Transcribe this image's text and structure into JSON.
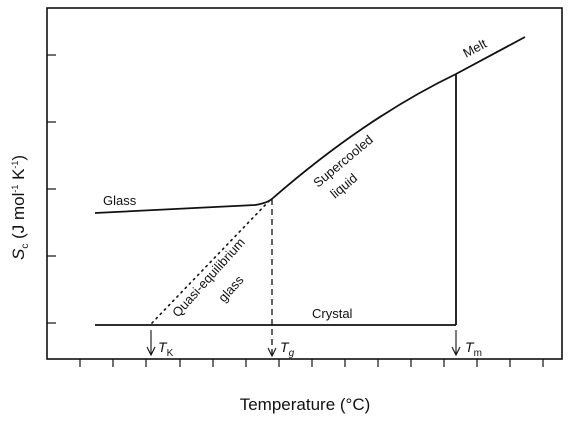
{
  "diagram": {
    "y_axis_label": {
      "symbol": "S",
      "sub": "c",
      "unit_open": " (J mol",
      "exp1": "-1",
      "k": " K",
      "exp2": "-1",
      "close": ")"
    },
    "x_axis_label": "Temperature (°C)",
    "curve_labels": {
      "glass": "Glass",
      "melt": "Melt",
      "supercooled_line1": "Supercooled",
      "supercooled_line2": "liquid",
      "quasi_line1": "Quasi-equilibrium",
      "quasi_line2": "glass",
      "crystal": "Crystal"
    },
    "markers": [
      {
        "symbol": "T",
        "sub": "K"
      },
      {
        "symbol": "T",
        "sub": "g"
      },
      {
        "symbol": "T",
        "sub": "m"
      }
    ]
  }
}
